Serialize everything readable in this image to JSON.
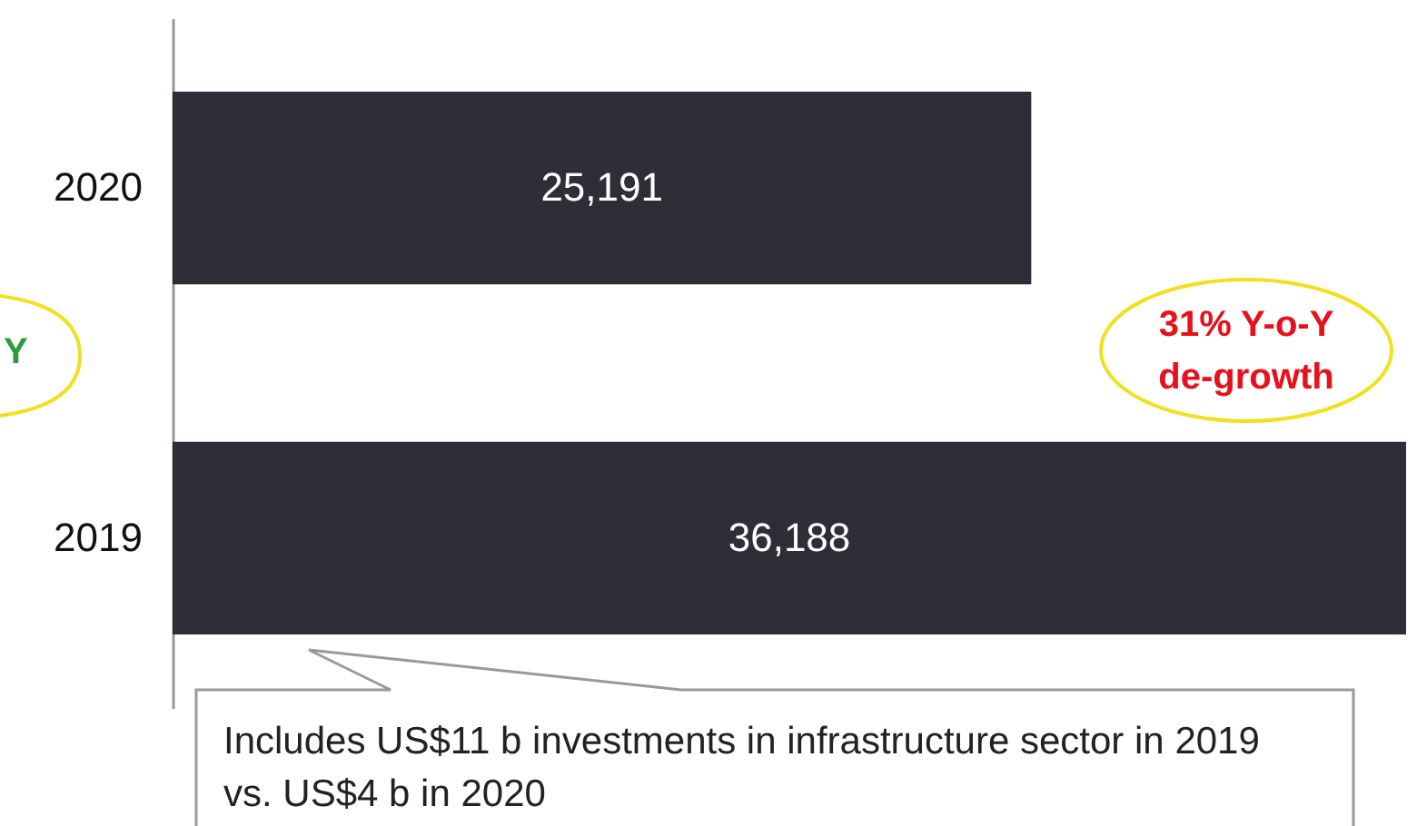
{
  "chart_data": {
    "type": "bar",
    "orientation": "horizontal",
    "categories": [
      "2020",
      "2019"
    ],
    "values": [
      25191,
      36188
    ],
    "color": "#2e2e38",
    "value_labels": [
      "25,191",
      "36,188"
    ],
    "annotations": [
      "Y",
      "31% Y-o-Y de-growth",
      "Includes US$11 b investments in infrastructure sector in 2019 vs. US$4 b in 2020"
    ]
  }
}
